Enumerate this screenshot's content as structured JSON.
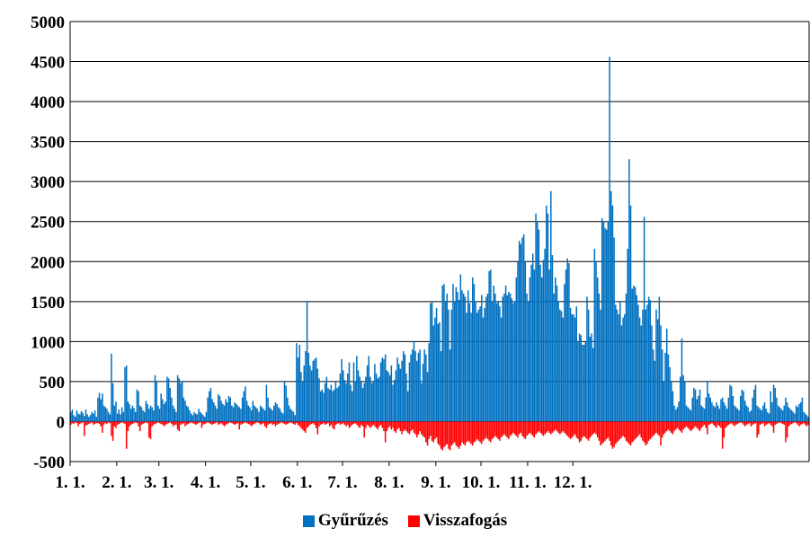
{
  "chart_data": {
    "type": "bar",
    "title": "",
    "xlabel": "",
    "ylabel": "",
    "ylim": [
      -500,
      5000
    ],
    "yticks": [
      5000,
      4500,
      4000,
      3500,
      3000,
      2500,
      2000,
      1500,
      1000,
      500,
      0,
      -500
    ],
    "categories": [
      "1. 1.",
      "2. 1.",
      "3. 1.",
      "4. 1.",
      "5. 1.",
      "6. 1.",
      "7. 1.",
      "8. 1.",
      "9. 1.",
      "10. 1.",
      "11. 1.",
      "12. 1."
    ],
    "grid": true,
    "legend_position": "bottom",
    "series": [
      {
        "name": "Gyűrűzés",
        "color": "#0070C0",
        "daily_values": [
          120,
          150,
          80,
          60,
          140,
          100,
          90,
          130,
          110,
          70,
          150,
          90,
          60,
          80,
          120,
          100,
          140,
          60,
          300,
          360,
          280,
          350,
          200,
          180,
          160,
          120,
          90,
          850,
          480,
          200,
          250,
          100,
          150,
          90,
          180,
          120,
          680,
          700,
          250,
          220,
          160,
          200,
          170,
          120,
          400,
          380,
          200,
          180,
          140,
          120,
          260,
          220,
          160,
          200,
          180,
          140,
          580,
          500,
          200,
          160,
          350,
          280,
          220,
          250,
          560,
          540,
          420,
          300,
          200,
          160,
          120,
          580,
          540,
          480,
          500,
          300,
          260,
          200,
          180,
          140,
          100,
          80,
          120,
          100,
          90,
          160,
          120,
          100,
          80,
          60,
          120,
          300,
          380,
          420,
          280,
          240,
          200,
          160,
          340,
          320,
          260,
          220,
          200,
          280,
          240,
          320,
          300,
          200,
          180,
          240,
          220,
          200,
          180,
          160,
          300,
          380,
          440,
          260,
          200,
          180,
          140,
          260,
          200,
          180,
          160,
          120,
          200,
          180,
          160,
          140,
          460,
          300,
          180,
          160,
          140,
          200,
          240,
          220,
          180,
          160,
          120,
          100,
          500,
          450,
          300,
          200,
          160,
          140,
          120,
          80,
          980,
          800,
          960,
          620,
          500,
          700,
          880,
          1500,
          860,
          700,
          640,
          760,
          780,
          800,
          660,
          540,
          380,
          400,
          360,
          480,
          560,
          420,
          400,
          460,
          380,
          400,
          500,
          420,
          440,
          600,
          780,
          640,
          520,
          480,
          600,
          740,
          460,
          380,
          740,
          500,
          820,
          640,
          560,
          500,
          420,
          480,
          560,
          700,
          820,
          560,
          480,
          500,
          720,
          600,
          540,
          560,
          740,
          800,
          780,
          840,
          640,
          620,
          580,
          700,
          460,
          520,
          640,
          800,
          720,
          660,
          760,
          880,
          840,
          600,
          380,
          740,
          840,
          900,
          1000,
          880,
          760,
          860,
          900,
          480,
          720,
          900,
          840,
          620,
          980,
          1480,
          1500,
          1200,
          1300,
          1420,
          1220,
          1240,
          880,
          1700,
          1720,
          1500,
          1600,
          1400,
          900,
          1400,
          1720,
          1500,
          1680,
          1620,
          1520,
          1840,
          1640,
          1600,
          1560,
          1360,
          1640,
          1480,
          1360,
          1800,
          1720,
          1500,
          1360,
          1400,
          1440,
          1580,
          1300,
          1420,
          1560,
          1600,
          1880,
          1900,
          1500,
          1700,
          1600,
          1480,
          1500,
          1440,
          1300,
          1560,
          1600,
          1700,
          1580,
          1620,
          1600,
          1540,
          1480,
          1500,
          1800,
          2000,
          2260,
          2220,
          2300,
          2340,
          2000,
          1600,
          1500,
          1800,
          1960,
          2100,
          1900,
          2600,
          2500,
          2400,
          1960,
          1800,
          2020,
          2160,
          2700,
          2600,
          1900,
          2880,
          2080,
          1600,
          1800,
          1700,
          1500,
          1400,
          1380,
          1300,
          1720,
          1900,
          2040,
          1980,
          1420,
          1340,
          1340,
          1300,
          1440,
          1000,
          1100,
          1080,
          960,
          960,
          1000,
          1560,
          1400,
          1060,
          1100,
          920,
          2160,
          2000,
          1800,
          1600,
          1400,
          2540,
          2500,
          2420,
          2400,
          2500,
          4560,
          2880,
          2700,
          2300,
          1460,
          1400,
          1340,
          1500,
          1200,
          1300,
          1340,
          1600,
          2160,
          3280,
          2700,
          1660,
          1700,
          1680,
          1580,
          1460,
          1300,
          1200,
          1400,
          2560,
          1400,
          1460,
          1560,
          1520,
          1200,
          900,
          760,
          1400,
          1280,
          1560,
          1200,
          900,
          500,
          860,
          1160,
          840,
          680,
          500,
          380,
          200,
          150,
          180,
          250,
          560,
          1040,
          580,
          500,
          200,
          180,
          160,
          140,
          300,
          420,
          400,
          280,
          320,
          400,
          200,
          180,
          160,
          300,
          500,
          350,
          300,
          240,
          200,
          180,
          240,
          200,
          160,
          280,
          300,
          240,
          200,
          160,
          300,
          460,
          440,
          320,
          200,
          180,
          160,
          140,
          320,
          400,
          380,
          260,
          200,
          180,
          120,
          140,
          300,
          400,
          460,
          200,
          180,
          160,
          140,
          200,
          240,
          160,
          120,
          100,
          380,
          240,
          460,
          420,
          300,
          200,
          180,
          160,
          140,
          200,
          300,
          240,
          180,
          160,
          140,
          120,
          100,
          200,
          180,
          220,
          240,
          300,
          120,
          100,
          80,
          60
        ]
      },
      {
        "name": "Visszafogás",
        "color": "#FF0000",
        "daily_values": [
          -40,
          -20,
          -30,
          -10,
          -20,
          -60,
          -30,
          -20,
          -10,
          -180,
          -50,
          -40,
          -30,
          -20,
          -10,
          -40,
          -30,
          -20,
          -20,
          -30,
          -60,
          -140,
          -40,
          -20,
          -30,
          -10,
          -20,
          -180,
          -240,
          -60,
          -80,
          -40,
          -30,
          -20,
          -10,
          -20,
          -30,
          -340,
          -120,
          -60,
          -40,
          -30,
          -20,
          -10,
          -20,
          -60,
          -120,
          -40,
          -30,
          -20,
          -10,
          -20,
          -200,
          -220,
          -60,
          -40,
          -30,
          -20,
          -10,
          -20,
          -30,
          -40,
          -60,
          -40,
          -30,
          -20,
          -10,
          -30,
          -60,
          -40,
          -40,
          -100,
          -120,
          -40,
          -30,
          -20,
          -60,
          -40,
          -30,
          -20,
          -10,
          -20,
          -30,
          -40,
          -30,
          -20,
          -10,
          -80,
          -40,
          -30,
          -20,
          -10,
          -20,
          -30,
          -40,
          -30,
          -20,
          -10,
          -40,
          -30,
          -20,
          -40,
          -60,
          -40,
          -30,
          -20,
          -10,
          -20,
          -30,
          -40,
          -30,
          -20,
          -100,
          -40,
          -30,
          -20,
          -10,
          -20,
          -30,
          -40,
          -60,
          -40,
          -30,
          -20,
          -10,
          -20,
          -40,
          -30,
          -20,
          -60,
          -80,
          -40,
          -30,
          -20,
          -40,
          -30,
          -60,
          -40,
          -30,
          -20,
          -10,
          -20,
          -30,
          -40,
          -30,
          -20,
          -10,
          -20,
          -30,
          -40,
          -20,
          -40,
          -60,
          -80,
          -100,
          -120,
          -140,
          -80,
          -60,
          -40,
          -30,
          -20,
          -40,
          -80,
          -160,
          -60,
          -40,
          -30,
          -20,
          -40,
          -30,
          -20,
          -60,
          -40,
          -80,
          -100,
          -40,
          -30,
          -20,
          -40,
          -30,
          -20,
          -40,
          -60,
          -40,
          -80,
          -60,
          -40,
          -30,
          -20,
          -40,
          -60,
          -80,
          -40,
          -60,
          -200,
          -80,
          -40,
          -60,
          -80,
          -60,
          -40,
          -60,
          -80,
          -100,
          -60,
          -40,
          -80,
          -120,
          -260,
          -120,
          -80,
          -60,
          -100,
          -80,
          -120,
          -140,
          -100,
          -80,
          -120,
          -160,
          -120,
          -100,
          -120,
          -140,
          -160,
          -120,
          -100,
          -140,
          -160,
          -200,
          -160,
          -120,
          -160,
          -180,
          -200,
          -260,
          -300,
          -220,
          -180,
          -240,
          -260,
          -220,
          -200,
          -280,
          -300,
          -340,
          -360,
          -320,
          -300,
          -280,
          -340,
          -360,
          -300,
          -280,
          -260,
          -300,
          -320,
          -340,
          -300,
          -260,
          -280,
          -300,
          -260,
          -240,
          -260,
          -280,
          -300,
          -260,
          -240,
          -220,
          -240,
          -260,
          -280,
          -240,
          -220,
          -200,
          -220,
          -240,
          -260,
          -220,
          -200,
          -180,
          -200,
          -220,
          -240,
          -200,
          -180,
          -160,
          -180,
          -200,
          -220,
          -180,
          -160,
          -140,
          -160,
          -180,
          -200,
          -160,
          -140,
          -180,
          -200,
          -220,
          -180,
          -160,
          -140,
          -160,
          -180,
          -200,
          -160,
          -140,
          -120,
          -140,
          -160,
          -180,
          -160,
          -140,
          -120,
          -140,
          -160,
          -140,
          -120,
          -100,
          -120,
          -140,
          -160,
          -140,
          -120,
          -140,
          -160,
          -180,
          -200,
          -220,
          -200,
          -180,
          -160,
          -200,
          -220,
          -260,
          -240,
          -200,
          -180,
          -200,
          -220,
          -240,
          -200,
          -180,
          -160,
          -140,
          -160,
          -200,
          -240,
          -300,
          -280,
          -260,
          -240,
          -220,
          -200,
          -240,
          -300,
          -340,
          -320,
          -280,
          -260,
          -240,
          -220,
          -200,
          -180,
          -200,
          -240,
          -260,
          -280,
          -300,
          -260,
          -240,
          -220,
          -200,
          -180,
          -160,
          -200,
          -240,
          -260,
          -300,
          -280,
          -240,
          -220,
          -200,
          -180,
          -160,
          -140,
          -160,
          -180,
          -300,
          -200,
          -160,
          -140,
          -120,
          -100,
          -120,
          -140,
          -160,
          -120,
          -100,
          -80,
          -100,
          -120,
          -140,
          -100,
          -80,
          -60,
          -80,
          -100,
          -120,
          -100,
          -80,
          -60,
          -80,
          -100,
          -120,
          -80,
          -60,
          -40,
          -80,
          -160,
          -40,
          -30,
          -20,
          -40,
          -60,
          -80,
          -40,
          -60,
          -80,
          -340,
          -200,
          -80,
          -60,
          -40,
          -30,
          -20,
          -40,
          -60,
          -40,
          -30,
          -20,
          -10,
          -20,
          -40,
          -60,
          -40,
          -30,
          -20,
          -60,
          -40,
          -30,
          -20,
          -200,
          -160,
          -40,
          -30,
          -20,
          -60,
          -40,
          -30,
          -20,
          -40,
          -60,
          -140,
          -40,
          -30,
          -20,
          -10,
          -20,
          -30,
          -40,
          -260,
          -200,
          -60,
          -40,
          -30,
          -20,
          -10,
          -20,
          -40,
          -60,
          -40,
          -30,
          -20,
          -40,
          -60,
          -40
        ]
      }
    ]
  }
}
